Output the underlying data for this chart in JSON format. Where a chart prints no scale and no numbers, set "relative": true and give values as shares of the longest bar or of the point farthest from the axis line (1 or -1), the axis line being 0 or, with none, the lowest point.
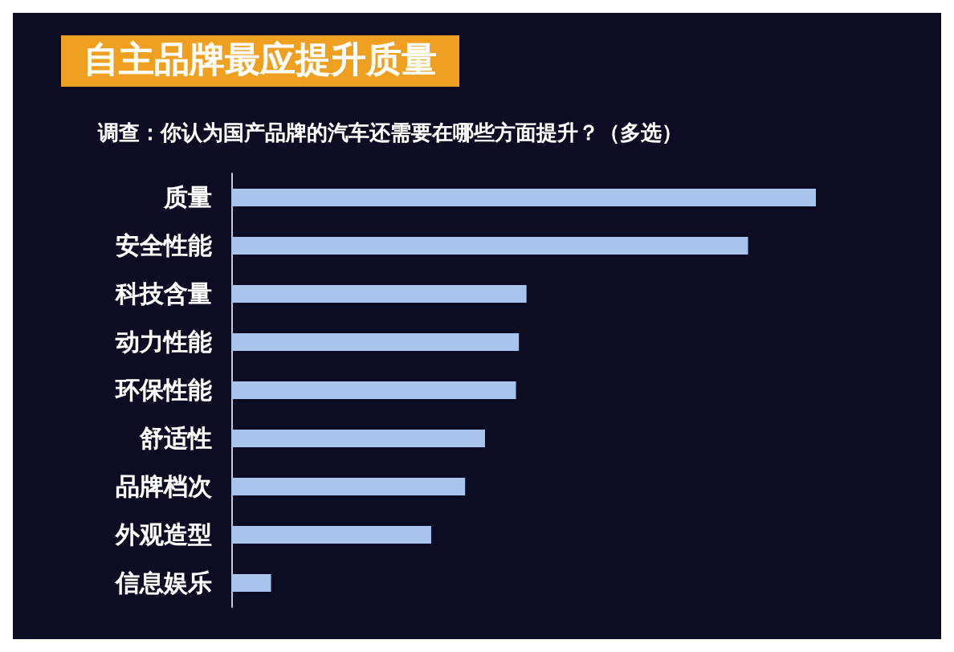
{
  "chart_data": {
    "type": "bar",
    "orientation": "horizontal",
    "relative": true,
    "title": "自主品牌最应提升质量",
    "subtitle": "调查：你认为国产品牌的汽车还需要在哪些方面提升？（多选）",
    "categories": [
      "质量",
      "安全性能",
      "科技含量",
      "动力性能",
      "环保性能",
      "舒适性",
      "品牌档次",
      "外观造型",
      "信息娱乐"
    ],
    "values": [
      1,
      0.884,
      0.505,
      0.492,
      0.487,
      0.434,
      0.4,
      0.342,
      0.068
    ],
    "color": "#a9c4ec"
  }
}
